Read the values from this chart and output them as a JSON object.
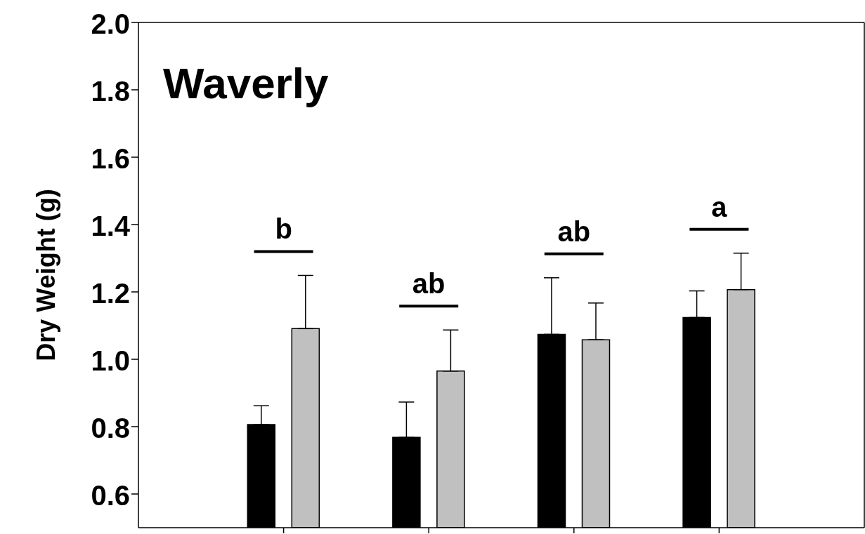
{
  "chart_data": {
    "type": "bar",
    "title": "Waverly",
    "ylabel": "Dry Weight (g)",
    "categories": [
      null,
      null,
      null,
      null
    ],
    "series": [
      {
        "color": "#000000",
        "values": [
          0.806,
          0.768,
          1.074,
          1.124
        ],
        "errors": [
          0.056,
          0.105,
          0.168,
          0.079
        ]
      },
      {
        "color": "#c0c0c0",
        "values": [
          1.091,
          0.965,
          1.058,
          1.207
        ],
        "errors": [
          0.158,
          0.122,
          0.109,
          0.108
        ]
      }
    ],
    "ylim": [
      0.5,
      2.0
    ],
    "yticks": [
      {
        "value": 0.6,
        "label": "0.6"
      },
      {
        "value": 0.8,
        "label": "0.8"
      },
      {
        "value": 1.0,
        "label": "1.0"
      },
      {
        "value": 1.2,
        "label": "1.2"
      },
      {
        "value": 1.4,
        "label": "1.4"
      },
      {
        "value": 1.6,
        "label": "1.6"
      },
      {
        "value": 1.8,
        "label": "1.8"
      },
      {
        "value": 2.0,
        "label": "2.0"
      }
    ],
    "annotations": [
      "b",
      "ab",
      "ab",
      "a"
    ],
    "grid": false,
    "legend": false
  }
}
